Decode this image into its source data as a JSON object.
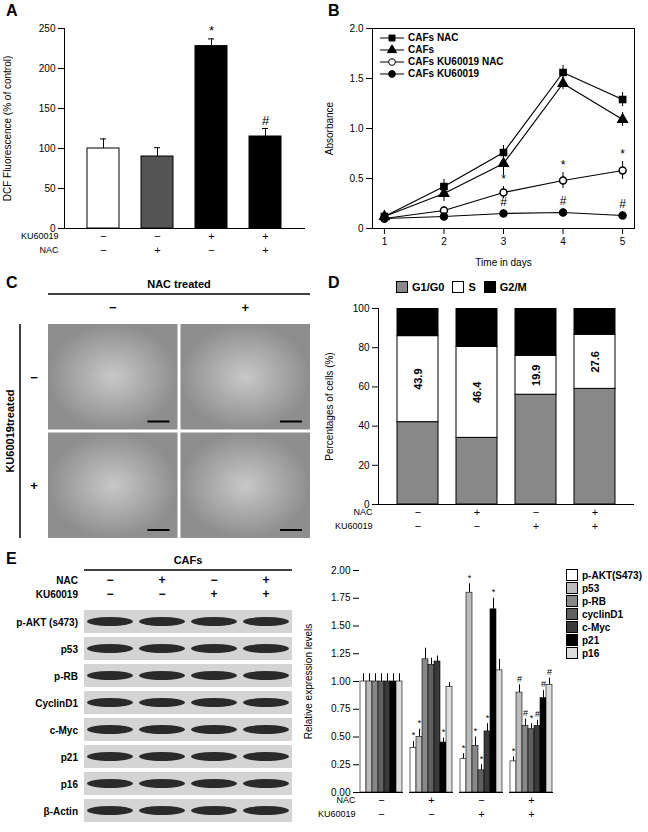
{
  "chart_data": [
    {
      "panel": "A",
      "type": "bar",
      "y_label": "DCF Fluorescence (% of control)",
      "values": [
        100,
        90,
        228,
        115
      ],
      "errors": [
        12,
        11,
        9,
        10
      ],
      "colors": [
        "#ffffff",
        "#555555",
        "#000000",
        "#000000"
      ],
      "annotations": [
        null,
        null,
        "*",
        "#"
      ],
      "x_label_rows": [
        {
          "name": "KU60019",
          "labels": [
            "−",
            "−",
            "+",
            "+"
          ]
        },
        {
          "name": "NAC",
          "labels": [
            "−",
            "+",
            "−",
            "+"
          ]
        }
      ],
      "ylim": [
        0,
        250
      ],
      "yticks": [
        0,
        50,
        100,
        150,
        200,
        250
      ]
    },
    {
      "panel": "B",
      "type": "line",
      "x_label": "Time in days",
      "y_label": "Absorbance",
      "x": [
        1,
        2,
        3,
        4,
        5
      ],
      "xlim": [
        0.8,
        5.2
      ],
      "xticks": [
        1,
        2,
        3,
        4,
        5
      ],
      "ylim": [
        0,
        2
      ],
      "yticks": [
        0,
        0.5,
        {
          "value": 1,
          "label": "1.0"
        },
        1.5,
        {
          "value": 2,
          "label": "2.0"
        }
      ],
      "legend": "top-left",
      "series": [
        {
          "name": "CAFs NAC",
          "color": "#000000",
          "marker": "square",
          "values": [
            0.12,
            0.42,
            0.76,
            1.56,
            1.29
          ],
          "errors": [
            0.03,
            0.07,
            0.07,
            0.07,
            0.07
          ],
          "annotations": [
            null,
            null,
            null,
            null,
            null
          ]
        },
        {
          "name": "CAFs",
          "color": "#000000",
          "marker": "triangle",
          "values": [
            0.12,
            0.35,
            0.65,
            1.45,
            1.09
          ],
          "errors": [
            0.03,
            0.08,
            0.12,
            0.06,
            0.07
          ],
          "annotations": [
            null,
            null,
            null,
            null,
            null
          ]
        },
        {
          "name": "CAFs KU60019 NAC",
          "color": "#000000",
          "marker": "circle-open",
          "values": [
            0.1,
            0.18,
            0.36,
            0.48,
            0.58
          ],
          "errors": [
            0.02,
            0.04,
            0.06,
            0.08,
            0.09
          ],
          "annotations": [
            null,
            null,
            "*",
            "*",
            "*"
          ]
        },
        {
          "name": "CAFs KU60019",
          "color": "#000000",
          "marker": "circle",
          "values": [
            0.1,
            0.12,
            0.15,
            0.16,
            0.13
          ],
          "errors": [
            0.02,
            0.03,
            0.04,
            0.04,
            0.04
          ],
          "annotations": [
            null,
            null,
            "#",
            "#",
            "#"
          ]
        }
      ]
    },
    {
      "panel": "D",
      "type": "bar",
      "stacked": true,
      "y_label": "Percentages of cells (%)",
      "ylim": [
        0,
        100
      ],
      "yticks": [
        0,
        20,
        40,
        60,
        80,
        100
      ],
      "legend": "top",
      "x_label_rows": [
        {
          "name": "NAC",
          "labels": [
            "−",
            "+",
            "−",
            "+"
          ]
        },
        {
          "name": "KU60019",
          "labels": [
            "−",
            "−",
            "+",
            "+"
          ]
        }
      ],
      "series": [
        {
          "name": "G1/G0",
          "color": "#888888",
          "values": [
            42,
            34,
            56,
            59
          ]
        },
        {
          "name": "S",
          "color": "#ffffff",
          "values": [
            43.9,
            46.4,
            19.9,
            27.6
          ],
          "data_labels": true
        },
        {
          "name": "G2/M",
          "color": "#000000",
          "values": [
            14.1,
            19.6,
            24.1,
            13.4
          ]
        }
      ]
    },
    {
      "panel": "E",
      "type": "bar",
      "y_label": "Relative expression levels",
      "ylim": [
        0,
        2
      ],
      "yticks": [
        {
          "value": 0,
          "label": "0.00"
        },
        {
          "value": 0.25,
          "label": "0.25"
        },
        {
          "value": 0.5,
          "label": "0.50"
        },
        {
          "value": 0.75,
          "label": "0.75"
        },
        {
          "value": 1,
          "label": "1.00"
        },
        {
          "value": 1.25,
          "label": "1.25"
        },
        {
          "value": 1.5,
          "label": "1.50"
        },
        {
          "value": 1.75,
          "label": "1.75"
        },
        {
          "value": 2,
          "label": "2.00"
        }
      ],
      "legend": "right",
      "x_label_rows": [
        {
          "name": "NAC",
          "labels": [
            "−",
            "+",
            "−",
            "+"
          ]
        },
        {
          "name": "KU60019",
          "labels": [
            "−",
            "−",
            "+",
            "+"
          ]
        }
      ],
      "series": [
        {
          "name": "p-AKT(S473)",
          "color": "#ffffff",
          "values": [
            1.0,
            0.4,
            0.3,
            0.28
          ],
          "errors": [
            0.07,
            0.06,
            0.05,
            0.04
          ],
          "annotations": [
            null,
            "*",
            "*",
            "*"
          ]
        },
        {
          "name": "p53",
          "color": "#bbbbbb",
          "values": [
            1.0,
            0.5,
            1.8,
            0.9
          ],
          "errors": [
            0.07,
            0.07,
            0.08,
            0.07
          ],
          "annotations": [
            null,
            "*",
            "*",
            "#"
          ]
        },
        {
          "name": "p-RB",
          "color": "#888888",
          "values": [
            1.0,
            1.2,
            0.42,
            0.6
          ],
          "errors": [
            0.07,
            0.1,
            0.08,
            0.06
          ],
          "annotations": [
            null,
            null,
            "*",
            "#"
          ]
        },
        {
          "name": "cyclinD1",
          "color": "#606060",
          "values": [
            1.0,
            1.15,
            0.2,
            0.57
          ],
          "errors": [
            0.07,
            0.06,
            0.05,
            0.05
          ],
          "annotations": [
            null,
            null,
            "*",
            "*"
          ]
        },
        {
          "name": "c-Myc",
          "color": "#3a3a3a",
          "values": [
            1.0,
            1.18,
            0.55,
            0.6
          ],
          "errors": [
            0.07,
            0.05,
            0.07,
            0.05
          ],
          "annotations": [
            null,
            null,
            "*",
            "#"
          ]
        },
        {
          "name": "p21",
          "color": "#000000",
          "values": [
            1.0,
            0.45,
            1.65,
            0.85
          ],
          "errors": [
            0.07,
            0.04,
            0.1,
            0.07
          ],
          "annotations": [
            null,
            "*",
            "*",
            "#"
          ]
        },
        {
          "name": "p16",
          "color": "#dddddd",
          "values": [
            1.0,
            0.95,
            1.1,
            0.97
          ],
          "errors": [
            0.07,
            0.04,
            0.1,
            0.06
          ],
          "annotations": [
            null,
            null,
            null,
            "#"
          ]
        }
      ]
    }
  ],
  "image_panel": {
    "panel": "C",
    "column_title": "NAC treated",
    "row_title": "KU60019treated",
    "column_labels": [
      "−",
      "+"
    ],
    "row_labels": [
      "−",
      "+"
    ]
  },
  "blot_panel": {
    "header": "CAFs",
    "conditions": [
      {
        "name": "NAC",
        "labels": [
          "−",
          "+",
          "−",
          "+"
        ]
      },
      {
        "name": "KU60019",
        "labels": [
          "−",
          "−",
          "+",
          "+"
        ]
      }
    ],
    "proteins": [
      "p-AKT (s473)",
      "p53",
      "p-RB",
      "CyclinD1",
      "c-Myc",
      "p21",
      "p16",
      "β-Actin"
    ]
  }
}
